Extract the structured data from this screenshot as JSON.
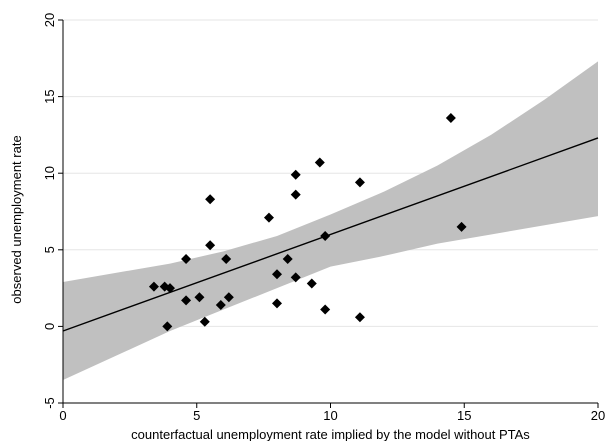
{
  "chart_data": {
    "type": "scatter",
    "title": "",
    "xlabel": "counterfactual unemployment rate implied by the model without PTAs",
    "ylabel": "observed unemployment rate",
    "xlim": [
      0,
      20
    ],
    "ylim": [
      -5,
      20
    ],
    "xticks": [
      0,
      5,
      10,
      15,
      20
    ],
    "yticks": [
      -5,
      0,
      5,
      10,
      15,
      20
    ],
    "grid": true,
    "legend": "none",
    "points": [
      {
        "x": 3.4,
        "y": 2.6
      },
      {
        "x": 3.8,
        "y": 2.6
      },
      {
        "x": 4.0,
        "y": 2.5
      },
      {
        "x": 3.9,
        "y": 0.0
      },
      {
        "x": 4.6,
        "y": 4.4
      },
      {
        "x": 4.6,
        "y": 1.7
      },
      {
        "x": 5.1,
        "y": 1.9
      },
      {
        "x": 5.3,
        "y": 0.3
      },
      {
        "x": 5.5,
        "y": 8.3
      },
      {
        "x": 5.5,
        "y": 5.3
      },
      {
        "x": 5.9,
        "y": 1.4
      },
      {
        "x": 6.1,
        "y": 4.4
      },
      {
        "x": 6.2,
        "y": 1.9
      },
      {
        "x": 7.7,
        "y": 7.1
      },
      {
        "x": 8.0,
        "y": 3.4
      },
      {
        "x": 8.0,
        "y": 1.5
      },
      {
        "x": 8.4,
        "y": 4.4
      },
      {
        "x": 8.7,
        "y": 9.9
      },
      {
        "x": 8.7,
        "y": 8.6
      },
      {
        "x": 8.7,
        "y": 3.2
      },
      {
        "x": 9.3,
        "y": 2.8
      },
      {
        "x": 9.6,
        "y": 10.7
      },
      {
        "x": 9.8,
        "y": 5.9
      },
      {
        "x": 9.8,
        "y": 1.1
      },
      {
        "x": 11.1,
        "y": 9.4
      },
      {
        "x": 11.1,
        "y": 0.6
      },
      {
        "x": 14.5,
        "y": 13.6
      },
      {
        "x": 14.9,
        "y": 6.5
      }
    ],
    "fit_line": {
      "x": [
        0,
        20
      ],
      "y": [
        -0.3,
        12.3
      ]
    },
    "confidence_band": {
      "x": [
        0,
        2,
        4,
        6,
        8,
        10,
        12,
        14,
        16,
        18,
        20
      ],
      "upper": [
        2.9,
        3.5,
        4.1,
        4.9,
        5.9,
        7.3,
        8.8,
        10.5,
        12.5,
        14.8,
        17.3
      ],
      "lower": [
        -3.5,
        -1.9,
        -0.3,
        1.1,
        2.5,
        3.9,
        4.6,
        5.4,
        6.0,
        6.6,
        7.2
      ]
    },
    "colors": {
      "points": "#000000",
      "fit_line": "#000000",
      "band": "#c0c0c0",
      "grid": "#e6e6e6",
      "axis": "#000000"
    }
  }
}
